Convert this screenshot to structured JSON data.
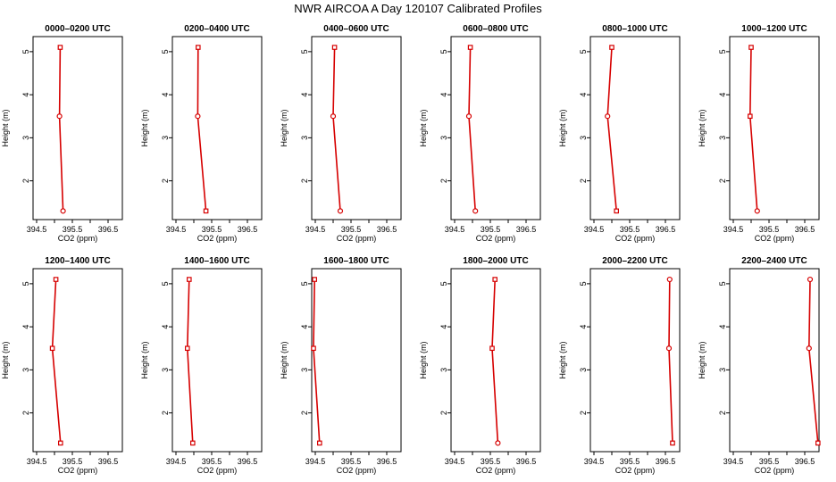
{
  "page": {
    "title": "NWR AIRCOA A  Day 120107  Calibrated Profiles"
  },
  "style": {
    "line_color": "#d60000",
    "marker_color": "#d60000",
    "axis_color": "#000000"
  },
  "chart_data": [
    {
      "type": "line",
      "title": "0000–0200 UTC",
      "xlabel": "CO2 (ppm)",
      "ylabel": "Height (m)",
      "xlim": [
        394.4,
        396.9
      ],
      "ylim": [
        1.1,
        5.35
      ],
      "xticks": [
        394.5,
        395.5,
        396.5
      ],
      "xtick_labels": [
        "394.5",
        "395.5",
        "396.5"
      ],
      "yticks": [
        2,
        3,
        4,
        5
      ],
      "ytick_labels": [
        "2",
        "3",
        "4",
        "5"
      ],
      "series": [
        {
          "x": [
            395.16,
            395.14,
            395.24
          ],
          "y": [
            5.1,
            3.5,
            1.3
          ],
          "markers": [
            "square",
            "circle",
            "circle"
          ]
        }
      ]
    },
    {
      "type": "line",
      "title": "0200–0400 UTC",
      "xlabel": "CO2 (ppm)",
      "ylabel": "Height (m)",
      "xlim": [
        394.4,
        396.9
      ],
      "ylim": [
        1.1,
        5.35
      ],
      "xticks": [
        394.5,
        395.5,
        396.5
      ],
      "xtick_labels": [
        "394.5",
        "395.5",
        "396.5"
      ],
      "yticks": [
        2,
        3,
        4,
        5
      ],
      "ytick_labels": [
        "2",
        "3",
        "4",
        "5"
      ],
      "series": [
        {
          "x": [
            395.12,
            395.11,
            395.34
          ],
          "y": [
            5.1,
            3.5,
            1.3
          ],
          "markers": [
            "square",
            "circle",
            "square"
          ]
        }
      ]
    },
    {
      "type": "line",
      "title": "0400–0600 UTC",
      "xlabel": "CO2 (ppm)",
      "ylabel": "Height (m)",
      "xlim": [
        394.4,
        396.9
      ],
      "ylim": [
        1.1,
        5.35
      ],
      "xticks": [
        394.5,
        395.5,
        396.5
      ],
      "xtick_labels": [
        "394.5",
        "395.5",
        "396.5"
      ],
      "yticks": [
        2,
        3,
        4,
        5
      ],
      "ytick_labels": [
        "2",
        "3",
        "4",
        "5"
      ],
      "series": [
        {
          "x": [
            395.04,
            395.0,
            395.2
          ],
          "y": [
            5.1,
            3.5,
            1.3
          ],
          "markers": [
            "square",
            "circle",
            "circle"
          ]
        }
      ]
    },
    {
      "type": "line",
      "title": "0600–0800 UTC",
      "xlabel": "CO2 (ppm)",
      "ylabel": "Height (m)",
      "xlim": [
        394.4,
        396.9
      ],
      "ylim": [
        1.1,
        5.35
      ],
      "xticks": [
        394.5,
        395.5,
        396.5
      ],
      "xtick_labels": [
        "394.5",
        "395.5",
        "396.5"
      ],
      "yticks": [
        2,
        3,
        4,
        5
      ],
      "ytick_labels": [
        "2",
        "3",
        "4",
        "5"
      ],
      "series": [
        {
          "x": [
            394.94,
            394.9,
            395.08
          ],
          "y": [
            5.1,
            3.5,
            1.3
          ],
          "markers": [
            "square",
            "circle",
            "circle"
          ]
        }
      ]
    },
    {
      "type": "line",
      "title": "0800–1000 UTC",
      "xlabel": "CO2 (ppm)",
      "ylabel": "Height (m)",
      "xlim": [
        394.4,
        396.9
      ],
      "ylim": [
        1.1,
        5.35
      ],
      "xticks": [
        394.5,
        395.5,
        396.5
      ],
      "xtick_labels": [
        "394.5",
        "395.5",
        "396.5"
      ],
      "yticks": [
        2,
        3,
        4,
        5
      ],
      "ytick_labels": [
        "2",
        "3",
        "4",
        "5"
      ],
      "series": [
        {
          "x": [
            395.0,
            394.88,
            395.13
          ],
          "y": [
            5.1,
            3.5,
            1.3
          ],
          "markers": [
            "square",
            "circle",
            "square"
          ]
        }
      ]
    },
    {
      "type": "line",
      "title": "1000–1200 UTC",
      "xlabel": "CO2 (ppm)",
      "ylabel": "Height (m)",
      "xlim": [
        394.4,
        396.9
      ],
      "ylim": [
        1.1,
        5.35
      ],
      "xticks": [
        394.5,
        395.5,
        396.5
      ],
      "xtick_labels": [
        "394.5",
        "395.5",
        "396.5"
      ],
      "yticks": [
        2,
        3,
        4,
        5
      ],
      "ytick_labels": [
        "2",
        "3",
        "4",
        "5"
      ],
      "series": [
        {
          "x": [
            395.0,
            394.97,
            395.17
          ],
          "y": [
            5.1,
            3.5,
            1.3
          ],
          "markers": [
            "square",
            "square",
            "circle"
          ]
        }
      ]
    },
    {
      "type": "line",
      "title": "1200–1400 UTC",
      "xlabel": "CO2 (ppm)",
      "ylabel": "Height (m)",
      "xlim": [
        394.4,
        396.9
      ],
      "ylim": [
        1.1,
        5.35
      ],
      "xticks": [
        394.5,
        395.5,
        396.5
      ],
      "xtick_labels": [
        "394.5",
        "395.5",
        "396.5"
      ],
      "yticks": [
        2,
        3,
        4,
        5
      ],
      "ytick_labels": [
        "2",
        "3",
        "4",
        "5"
      ],
      "series": [
        {
          "x": [
            395.04,
            394.94,
            395.17
          ],
          "y": [
            5.1,
            3.5,
            1.3
          ],
          "markers": [
            "square",
            "square",
            "square"
          ]
        }
      ]
    },
    {
      "type": "line",
      "title": "1400–1600 UTC",
      "xlabel": "CO2 (ppm)",
      "ylabel": "Height (m)",
      "xlim": [
        394.4,
        396.9
      ],
      "ylim": [
        1.1,
        5.35
      ],
      "xticks": [
        394.5,
        395.5,
        396.5
      ],
      "xtick_labels": [
        "394.5",
        "395.5",
        "396.5"
      ],
      "yticks": [
        2,
        3,
        4,
        5
      ],
      "ytick_labels": [
        "2",
        "3",
        "4",
        "5"
      ],
      "series": [
        {
          "x": [
            394.87,
            394.82,
            394.97
          ],
          "y": [
            5.1,
            3.5,
            1.3
          ],
          "markers": [
            "square",
            "square",
            "square"
          ]
        }
      ]
    },
    {
      "type": "line",
      "title": "1600–1800 UTC",
      "xlabel": "CO2 (ppm)",
      "ylabel": "Height (m)",
      "xlim": [
        394.4,
        396.9
      ],
      "ylim": [
        1.1,
        5.35
      ],
      "xticks": [
        394.5,
        395.5,
        396.5
      ],
      "xtick_labels": [
        "394.5",
        "395.5",
        "396.5"
      ],
      "yticks": [
        2,
        3,
        4,
        5
      ],
      "ytick_labels": [
        "2",
        "3",
        "4",
        "5"
      ],
      "series": [
        {
          "x": [
            394.48,
            394.45,
            394.62
          ],
          "y": [
            5.1,
            3.5,
            1.3
          ],
          "markers": [
            "square",
            "square",
            "square"
          ]
        }
      ]
    },
    {
      "type": "line",
      "title": "1800–2000 UTC",
      "xlabel": "CO2 (ppm)",
      "ylabel": "Height (m)",
      "xlim": [
        394.4,
        396.9
      ],
      "ylim": [
        1.1,
        5.35
      ],
      "xticks": [
        394.5,
        395.5,
        396.5
      ],
      "xtick_labels": [
        "394.5",
        "395.5",
        "396.5"
      ],
      "yticks": [
        2,
        3,
        4,
        5
      ],
      "ytick_labels": [
        "2",
        "3",
        "4",
        "5"
      ],
      "series": [
        {
          "x": [
            395.63,
            395.55,
            395.71
          ],
          "y": [
            5.1,
            3.5,
            1.3
          ],
          "markers": [
            "square",
            "square",
            "circle"
          ]
        }
      ]
    },
    {
      "type": "line",
      "title": "2000–2200 UTC",
      "xlabel": "CO2 (ppm)",
      "ylabel": "Height (m)",
      "xlim": [
        394.4,
        396.9
      ],
      "ylim": [
        1.1,
        5.35
      ],
      "xticks": [
        394.5,
        395.5,
        396.5
      ],
      "xtick_labels": [
        "394.5",
        "395.5",
        "396.5"
      ],
      "yticks": [
        2,
        3,
        4,
        5
      ],
      "ytick_labels": [
        "2",
        "3",
        "4",
        "5"
      ],
      "series": [
        {
          "x": [
            396.62,
            396.6,
            396.7
          ],
          "y": [
            5.1,
            3.5,
            1.3
          ],
          "markers": [
            "circle",
            "circle",
            "square"
          ]
        }
      ]
    },
    {
      "type": "line",
      "title": "2200–2400 UTC",
      "xlabel": "CO2 (ppm)",
      "ylabel": "Height (m)",
      "xlim": [
        394.4,
        396.9
      ],
      "ylim": [
        1.1,
        5.35
      ],
      "xticks": [
        394.5,
        395.5,
        396.5
      ],
      "xtick_labels": [
        "394.5",
        "395.5",
        "396.5"
      ],
      "yticks": [
        2,
        3,
        4,
        5
      ],
      "ytick_labels": [
        "2",
        "3",
        "4",
        "5"
      ],
      "series": [
        {
          "x": [
            396.65,
            396.62,
            396.87
          ],
          "y": [
            5.1,
            3.5,
            1.3
          ],
          "markers": [
            "circle",
            "circle",
            "square"
          ]
        }
      ]
    }
  ]
}
